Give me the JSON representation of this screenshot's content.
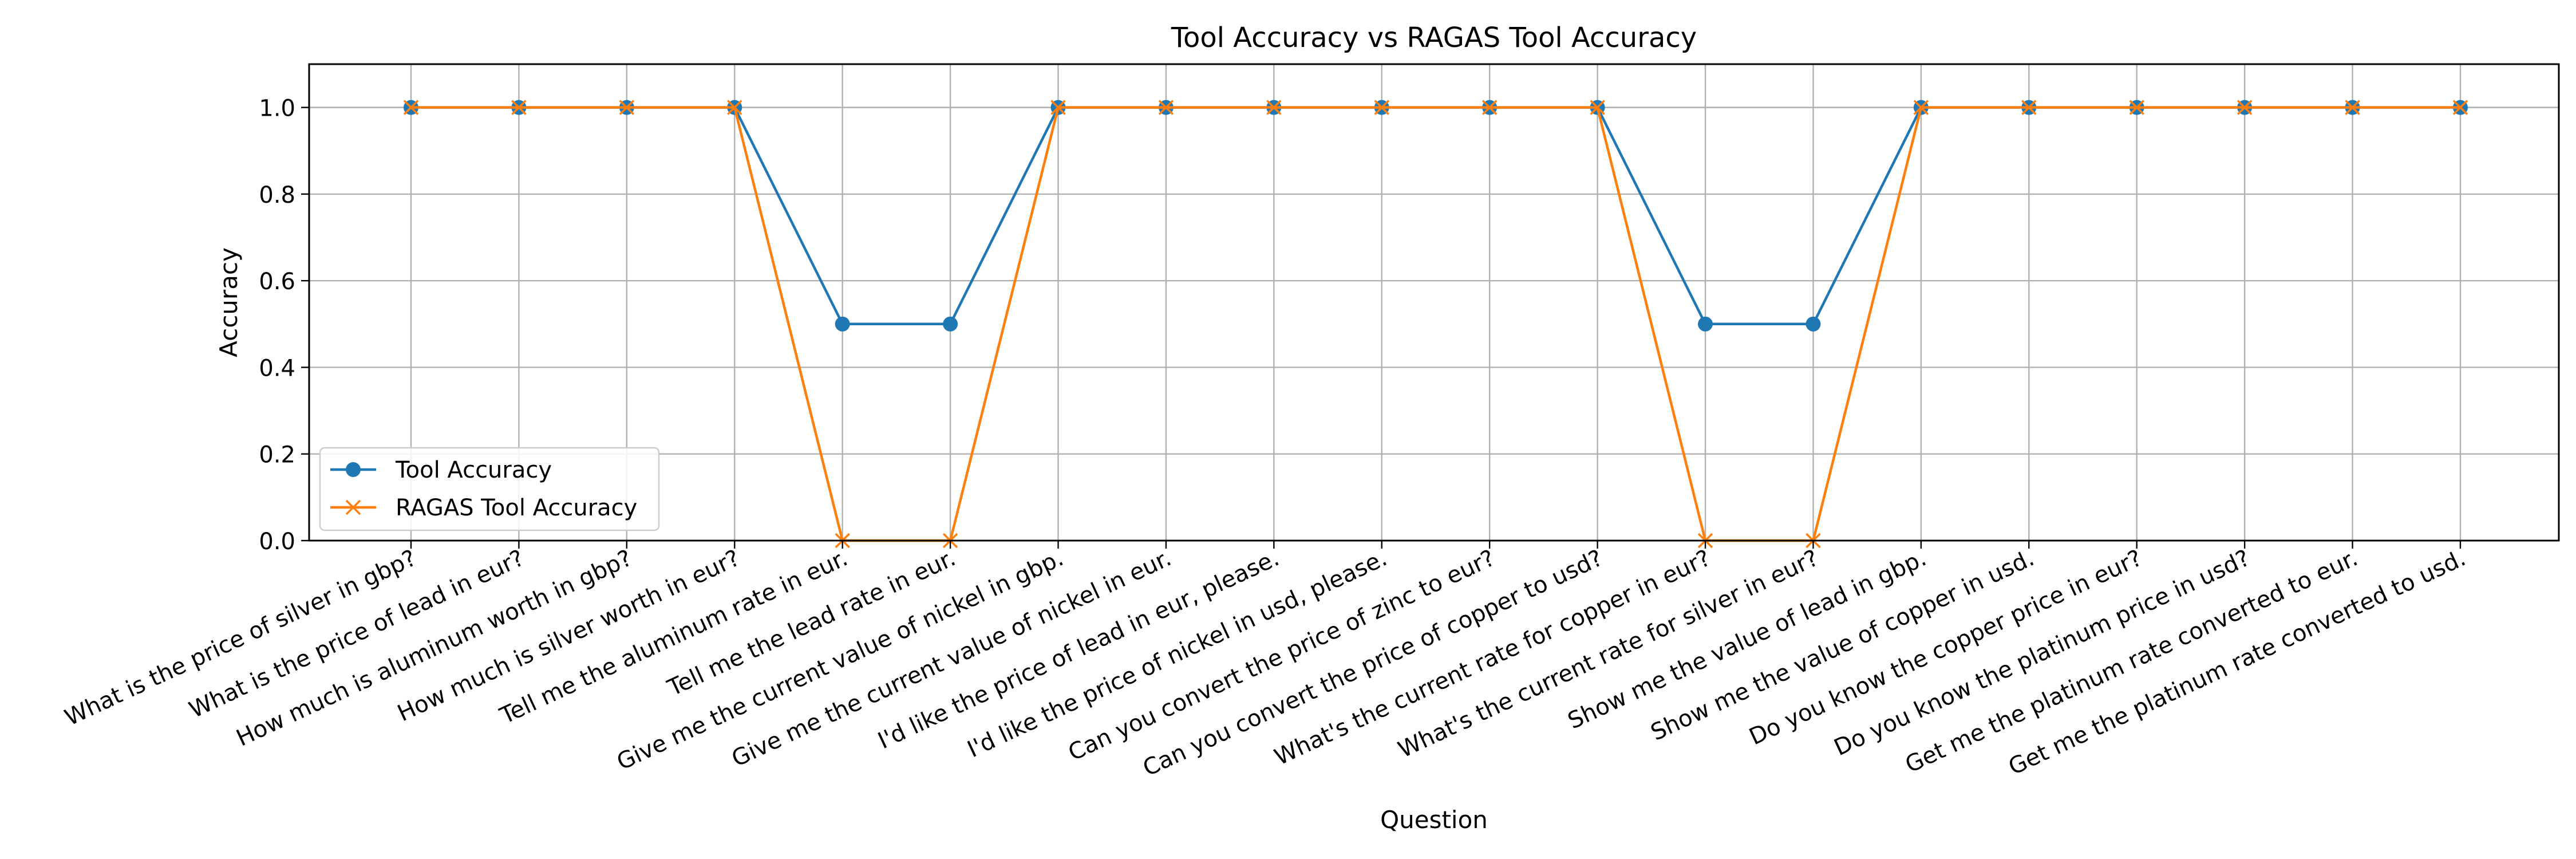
{
  "chart_data": {
    "type": "line",
    "title": "Tool Accuracy vs RAGAS Tool Accuracy",
    "xlabel": "Question",
    "ylabel": "Accuracy",
    "ylim": [
      0,
      1.1
    ],
    "yticks": [
      0.0,
      0.2,
      0.4,
      0.6,
      0.8,
      1.0
    ],
    "ytick_labels": [
      "0.0",
      "0.2",
      "0.4",
      "0.6",
      "0.8",
      "1.0"
    ],
    "grid": true,
    "legend_position": "lower-left",
    "categories": [
      "What is the price of silver in gbp?",
      "What is the price of lead in eur?",
      "How much is aluminum worth in gbp?",
      "How much is silver worth in eur?",
      "Tell me the aluminum rate in eur.",
      "Tell me the lead rate in eur.",
      "Give me the current value of nickel in gbp.",
      "Give me the current value of nickel in eur.",
      "I'd like the price of lead in eur, please.",
      "I'd like the price of nickel in usd, please.",
      "Can you convert the price of zinc to eur?",
      "Can you convert the price of copper to usd?",
      "What's the current rate for copper in eur?",
      "What's the current rate for silver in eur?",
      "Show me the value of lead in gbp.",
      "Show me the value of copper in usd.",
      "Do you know the copper price in eur?",
      "Do you know the platinum price in usd?",
      "Get me the platinum rate converted to eur.",
      "Get me the platinum rate converted to usd."
    ],
    "series": [
      {
        "name": "Tool Accuracy",
        "color": "#1f77b4",
        "marker": "circle",
        "values": [
          1,
          1,
          1,
          1,
          0.5,
          0.5,
          1,
          1,
          1,
          1,
          1,
          1,
          0.5,
          0.5,
          1,
          1,
          1,
          1,
          1,
          1
        ]
      },
      {
        "name": "RAGAS Tool Accuracy",
        "color": "#ff7f0e",
        "marker": "x",
        "values": [
          1,
          1,
          1,
          1,
          0,
          0,
          1,
          1,
          1,
          1,
          1,
          1,
          0,
          0,
          1,
          1,
          1,
          1,
          1,
          1
        ]
      }
    ]
  }
}
